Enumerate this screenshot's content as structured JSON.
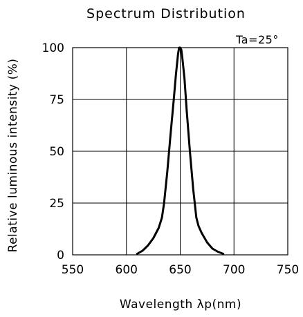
{
  "chart_data": {
    "type": "line",
    "title": "Spectrum Distribution",
    "annotation": "Ta=25°",
    "xlabel": "Wavelength λp(nm)",
    "ylabel": "Relative luminous intensity (%)",
    "xlim": [
      550,
      750
    ],
    "ylim": [
      0,
      100
    ],
    "x_ticks": [
      "550",
      "600",
      "650",
      "700",
      "750"
    ],
    "y_ticks": [
      "0",
      "25",
      "50",
      "75",
      "100"
    ],
    "grid": true,
    "series": [
      {
        "x": [
          610,
          615,
          620,
          625,
          630,
          633,
          635,
          638,
          641,
          644,
          646,
          648,
          649,
          650,
          651,
          652,
          654,
          656,
          659,
          662,
          665,
          667,
          670,
          675,
          680,
          685,
          690
        ],
        "y": [
          0.5,
          2,
          4.5,
          8,
          13,
          18,
          25,
          40,
          58,
          75,
          87,
          97,
          100,
          100,
          99,
          95,
          85,
          70,
          50,
          32,
          18,
          14,
          10.5,
          6,
          3,
          1.5,
          0.5
        ]
      }
    ]
  }
}
